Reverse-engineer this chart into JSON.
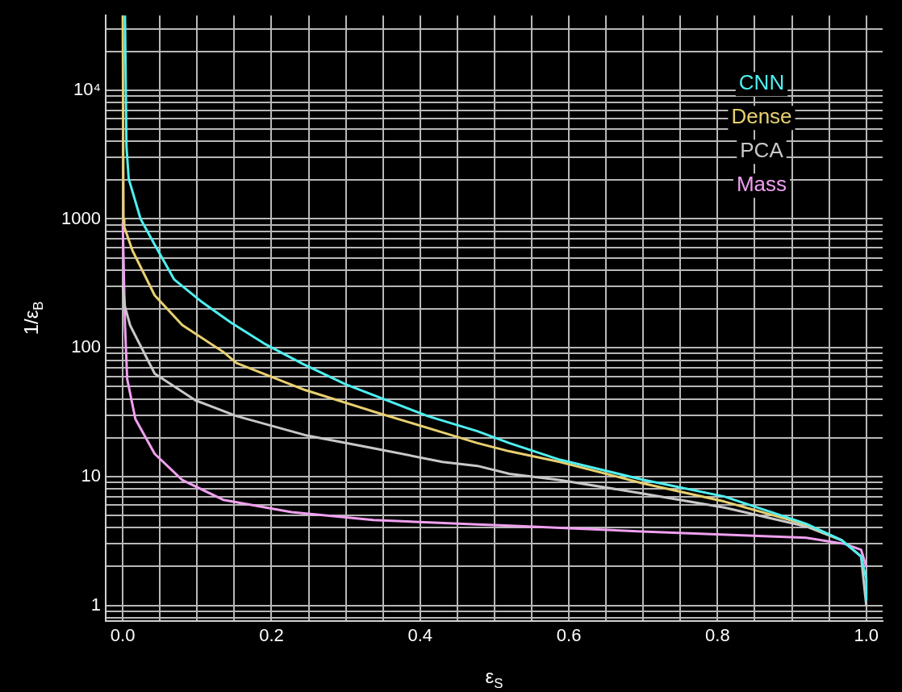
{
  "chart_data": {
    "type": "line",
    "xlabel": "ε$_{S}$",
    "ylabel": "1/ε$_{B}$",
    "log": "y",
    "grid": true,
    "legend": "top right",
    "marker": "none",
    "line_style": "solid",
    "xlim": [
      -0.023,
      1.022
    ],
    "ylim": [
      0.76,
      38000
    ],
    "xticks": [
      {
        "value": 0,
        "label": "0.0"
      },
      {
        "value": 0.05,
        "label": null
      },
      {
        "value": 0.1,
        "label": null
      },
      {
        "value": 0.15,
        "label": null
      },
      {
        "value": 0.2,
        "label": "0.2"
      },
      {
        "value": 0.25,
        "label": null
      },
      {
        "value": 0.3,
        "label": null
      },
      {
        "value": 0.35,
        "label": null
      },
      {
        "value": 0.4,
        "label": "0.4"
      },
      {
        "value": 0.45,
        "label": null
      },
      {
        "value": 0.5,
        "label": null
      },
      {
        "value": 0.55,
        "label": null
      },
      {
        "value": 0.6,
        "label": "0.6"
      },
      {
        "value": 0.65,
        "label": null
      },
      {
        "value": 0.7,
        "label": null
      },
      {
        "value": 0.75,
        "label": null
      },
      {
        "value": 0.8,
        "label": "0.8"
      },
      {
        "value": 0.85,
        "label": null
      },
      {
        "value": 0.9,
        "label": null
      },
      {
        "value": 0.95,
        "label": null
      },
      {
        "value": 1,
        "label": "1.0"
      }
    ],
    "yticks": [
      {
        "value": 0.8,
        "label": null
      },
      {
        "value": 0.9,
        "label": null
      },
      1,
      {
        "value": 2,
        "label": null
      },
      {
        "value": 3,
        "label": null
      },
      {
        "value": 4,
        "label": null
      },
      {
        "value": 5,
        "label": null
      },
      {
        "value": 6,
        "label": null
      },
      {
        "value": 7,
        "label": null
      },
      {
        "value": 8,
        "label": null
      },
      {
        "value": 9,
        "label": null
      },
      10,
      {
        "value": 20,
        "label": null
      },
      {
        "value": 30,
        "label": null
      },
      {
        "value": 40,
        "label": null
      },
      {
        "value": 50,
        "label": null
      },
      {
        "value": 60,
        "label": null
      },
      {
        "value": 70,
        "label": null
      },
      {
        "value": 80,
        "label": null
      },
      {
        "value": 90,
        "label": null
      },
      100,
      {
        "value": 200,
        "label": null
      },
      {
        "value": 300,
        "label": null
      },
      {
        "value": 400,
        "label": null
      },
      {
        "value": 500,
        "label": null
      },
      {
        "value": 600,
        "label": null
      },
      {
        "value": 700,
        "label": null
      },
      {
        "value": 800,
        "label": null
      },
      {
        "value": 900,
        "label": null
      },
      1000,
      {
        "value": 2000,
        "label": null
      },
      {
        "value": 3000,
        "label": null
      },
      {
        "value": 4000,
        "label": null
      },
      {
        "value": 5000,
        "label": null
      },
      {
        "value": 6000,
        "label": null
      },
      {
        "value": 7000,
        "label": null
      },
      {
        "value": 8000,
        "label": null
      },
      {
        "value": 9000,
        "label": null
      },
      {
        "value": 10000,
        "label": "10⁴"
      },
      {
        "value": 20000,
        "label": null
      },
      {
        "value": 30000,
        "label": null
      }
    ],
    "series": [
      {
        "name": "CNN",
        "color": "#4ef0f0",
        "x": [
          0.003,
          0.005,
          0.008,
          0.024,
          0.043,
          0.069,
          0.105,
          0.146,
          0.19,
          0.242,
          0.3,
          0.41,
          0.477,
          0.52,
          0.588,
          0.698,
          0.809,
          0.919,
          0.967,
          0.993,
          1.0,
          1.0
        ],
        "values": [
          38000,
          3650,
          2050,
          1000,
          630,
          340,
          230,
          156,
          108,
          75,
          52,
          29.5,
          22.5,
          18.2,
          13.5,
          9.5,
          7.0,
          4.3,
          3.2,
          2.4,
          1.6,
          1.1
        ]
      },
      {
        "name": "Dense",
        "color": "#e8d070",
        "x": [
          0.0,
          0.001,
          0.002,
          0.013,
          0.043,
          0.08,
          0.135,
          0.153,
          0.245,
          0.337,
          0.43,
          0.477,
          0.52,
          0.588,
          0.698,
          0.809,
          0.919,
          0.967
        ],
        "values": [
          38000,
          1000,
          870,
          570,
          255,
          150,
          93,
          76,
          47,
          32,
          22,
          18.2,
          15.7,
          13.0,
          8.9,
          6.4,
          4.25,
          3.2
        ]
      },
      {
        "name": "PCA",
        "color": "#c8c8c8",
        "x": [
          0.0,
          0.003,
          0.01,
          0.017,
          0.043,
          0.098,
          0.153,
          0.245,
          0.337,
          0.43,
          0.477,
          0.52,
          0.588,
          0.698,
          0.809,
          0.919,
          0.967,
          0.993,
          1.0
        ],
        "values": [
          300,
          208,
          149,
          124,
          63,
          39,
          29.5,
          21,
          16.6,
          13,
          12.1,
          10.5,
          9.4,
          7.4,
          5.75,
          4.1,
          3.2,
          2.4,
          1.0
        ]
      },
      {
        "name": "Mass",
        "color": "#f0a0f0",
        "x": [
          0.0,
          0.003,
          0.006,
          0.017,
          0.043,
          0.08,
          0.135,
          0.227,
          0.337,
          0.477,
          0.52,
          0.698,
          0.919,
          0.971,
          0.993,
          1.0
        ],
        "values": [
          930,
          150,
          57,
          28,
          15,
          9.4,
          6.6,
          5.3,
          4.6,
          4.25,
          4.15,
          3.75,
          3.35,
          3.0,
          2.7,
          2.0
        ]
      }
    ]
  }
}
